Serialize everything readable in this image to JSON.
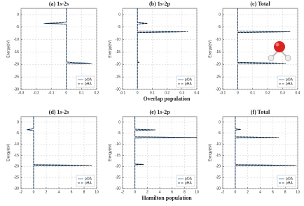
{
  "chart_data": [
    {
      "type": "line",
      "title": "(a) 1s-2s",
      "ylabel": "Energy(eV)",
      "xlim": [
        -0.3,
        0.2
      ],
      "xticks": [
        -0.3,
        -0.2,
        -0.1,
        0,
        0.1,
        0.2
      ],
      "ylim": [
        -30,
        2.5
      ],
      "yticks": [
        0,
        -5,
        -10,
        -15,
        -20,
        -25,
        -30
      ],
      "grid": true,
      "legend": "lower right",
      "series": [
        {
          "name": "pOA",
          "color": "#3a7fc1",
          "linestyle": "solid",
          "y": [
            2.5,
            -3.0,
            -3.3,
            -3.5,
            -3.8,
            -19.0,
            -19.3,
            -19.5,
            -19.8,
            -30
          ],
          "x": [
            0,
            0,
            -0.05,
            -0.15,
            0,
            0,
            0.05,
            0.17,
            0,
            0
          ]
        },
        {
          "name": "pHA",
          "color": "#111111",
          "linestyle": "dashed",
          "y": [
            2.5,
            -3.0,
            -3.3,
            -3.5,
            -3.8,
            -19.0,
            -19.3,
            -19.5,
            -19.8,
            -30
          ],
          "x": [
            0,
            0,
            -0.04,
            -0.14,
            0,
            0,
            0.04,
            0.16,
            0,
            0
          ]
        }
      ]
    },
    {
      "type": "line",
      "title": "(b) 1s-2p",
      "ylabel": "Energy(eV)",
      "xlabel": "Overlap population",
      "xlim": [
        -0.1,
        0.4
      ],
      "xticks": [
        -0.1,
        0,
        0.1,
        0.2,
        0.3,
        0.4
      ],
      "ylim": [
        -30,
        2.5
      ],
      "yticks": [
        0,
        -5,
        -10,
        -15,
        -20,
        -25,
        -30
      ],
      "grid": true,
      "legend": "lower right",
      "series": [
        {
          "name": "pOA",
          "color": "#3a7fc1",
          "linestyle": "solid",
          "y": [
            2.5,
            -3.2,
            -3.5,
            -3.8,
            -6.6,
            -6.9,
            -7.2,
            -18.9,
            -19.1,
            -19.3,
            -30
          ],
          "x": [
            0,
            0,
            0.06,
            0,
            0,
            0.32,
            0,
            0,
            0.01,
            0,
            0
          ]
        },
        {
          "name": "pHA",
          "color": "#111111",
          "linestyle": "dashed",
          "y": [
            2.5,
            -3.2,
            -3.5,
            -3.8,
            -6.6,
            -6.9,
            -7.2,
            -18.9,
            -19.1,
            -19.3,
            -30
          ],
          "x": [
            0,
            0,
            0.07,
            0,
            0,
            0.34,
            0,
            0,
            0.01,
            0,
            0
          ]
        }
      ]
    },
    {
      "type": "line",
      "title": "(c) Total",
      "ylabel": "Energy(eV)",
      "xlim": [
        -0.1,
        0.4
      ],
      "xticks": [
        -0.1,
        0,
        0.1,
        0.2,
        0.3,
        0.4
      ],
      "ylim": [
        -30,
        2.5
      ],
      "yticks": [
        0,
        -5,
        -10,
        -15,
        -20,
        -25,
        -30
      ],
      "grid": true,
      "legend": "lower right",
      "series": [
        {
          "name": "pOA",
          "color": "#3a7fc1",
          "linestyle": "solid",
          "y": [
            2.5,
            -3.0,
            -3.3,
            -3.6,
            -6.6,
            -6.9,
            -7.2,
            -19.2,
            -19.5,
            -19.8,
            -30
          ],
          "x": [
            0,
            0,
            -0.005,
            0,
            0,
            0.33,
            0,
            0,
            0.3,
            0,
            0
          ]
        },
        {
          "name": "pHA",
          "color": "#111111",
          "linestyle": "dashed",
          "y": [
            2.5,
            -3.0,
            -3.3,
            -3.6,
            -6.6,
            -6.9,
            -7.2,
            -19.2,
            -19.5,
            -19.8,
            -30
          ],
          "x": [
            0,
            0,
            -0.004,
            0,
            0,
            0.35,
            0,
            0,
            0.32,
            0,
            0
          ]
        }
      ]
    },
    {
      "type": "line",
      "title": "(d) 1s-2s",
      "ylabel": "Energy(eV)",
      "xlim": [
        -2,
        10
      ],
      "xticks": [
        -2,
        0,
        2,
        4,
        6,
        8,
        10
      ],
      "ylim": [
        -30,
        2.5
      ],
      "yticks": [
        0,
        -5,
        -10,
        -15,
        -20,
        -25,
        -30
      ],
      "grid": true,
      "legend": "lower right",
      "series": [
        {
          "name": "pOA",
          "color": "#3a7fc1",
          "linestyle": "solid",
          "y": [
            2.5,
            -3.0,
            -3.4,
            -3.8,
            -19.2,
            -19.5,
            -19.8,
            -30
          ],
          "x": [
            0,
            0,
            -1.0,
            0,
            0,
            8.8,
            0,
            0
          ]
        },
        {
          "name": "pHA",
          "color": "#111111",
          "linestyle": "dashed",
          "y": [
            2.5,
            -3.0,
            -3.4,
            -3.8,
            -19.2,
            -19.5,
            -19.8,
            -30
          ],
          "x": [
            0,
            0,
            -1.1,
            0,
            0,
            9.3,
            0,
            0
          ]
        }
      ]
    },
    {
      "type": "line",
      "title": "(e) 1s-2p",
      "ylabel": "Energy(eV)",
      "xlabel": "Hamilton population",
      "xlim": [
        -2,
        10
      ],
      "xticks": [
        -2,
        0,
        2,
        4,
        6,
        8,
        10
      ],
      "ylim": [
        -30,
        2.5
      ],
      "yticks": [
        0,
        -5,
        -10,
        -15,
        -20,
        -25,
        -30
      ],
      "grid": true,
      "legend": "lower right",
      "series": [
        {
          "name": "pOA",
          "color": "#3a7fc1",
          "linestyle": "solid",
          "y": [
            2.5,
            -3.2,
            -3.5,
            -3.8,
            -6.6,
            -6.9,
            -7.2,
            -18.9,
            -19.1,
            -19.3,
            -30
          ],
          "x": [
            0,
            0,
            3.0,
            0,
            0,
            10,
            0,
            0,
            1.3,
            0,
            0
          ]
        },
        {
          "name": "pHA",
          "color": "#111111",
          "linestyle": "dashed",
          "y": [
            2.5,
            -3.2,
            -3.5,
            -3.8,
            -6.6,
            -6.9,
            -7.2,
            -18.9,
            -19.1,
            -19.3,
            -30
          ],
          "x": [
            0,
            0,
            3.3,
            0,
            0,
            10,
            0,
            0,
            1.4,
            0,
            0
          ]
        }
      ]
    },
    {
      "type": "line",
      "title": "(f) Total",
      "ylabel": "Energy(eV)",
      "xlim": [
        -2,
        10
      ],
      "xticks": [
        -2,
        0,
        2,
        4,
        6,
        8,
        10
      ],
      "ylim": [
        -30,
        2.5
      ],
      "yticks": [
        0,
        -5,
        -10,
        -15,
        -20,
        -25,
        -30
      ],
      "grid": true,
      "legend": "lower right",
      "series": [
        {
          "name": "pOA",
          "color": "#3a7fc1",
          "linestyle": "solid",
          "y": [
            2.5,
            -3.0,
            -3.3,
            -3.6,
            -6.6,
            -6.9,
            -7.2,
            -19.2,
            -19.5,
            -19.8,
            -30
          ],
          "x": [
            0,
            0,
            0.8,
            0,
            0,
            6.5,
            0,
            0,
            9.5,
            0,
            0
          ]
        },
        {
          "name": "pHA",
          "color": "#111111",
          "linestyle": "dashed",
          "y": [
            2.5,
            -3.0,
            -3.3,
            -3.6,
            -6.6,
            -6.9,
            -7.2,
            -19.2,
            -19.5,
            -19.8,
            -30
          ],
          "x": [
            0,
            0,
            0.9,
            0,
            0,
            7.0,
            0,
            0,
            9.8,
            0,
            0
          ]
        }
      ]
    }
  ]
}
